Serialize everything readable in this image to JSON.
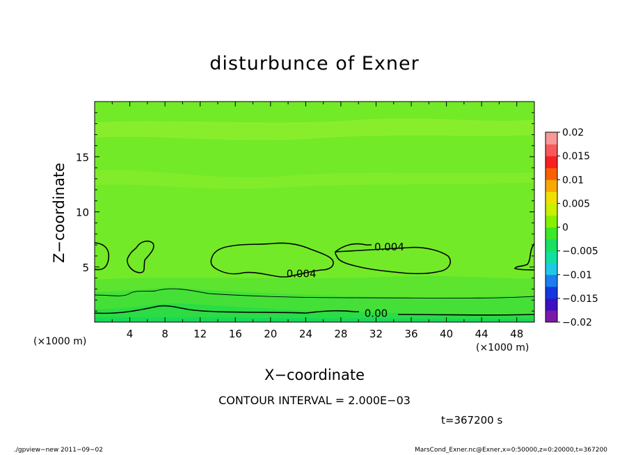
{
  "chart_data": {
    "type": "heatmap",
    "title": "disturbunce of Exner",
    "xlabel": "X−coordinate",
    "ylabel": "Z−coordinate",
    "x_unit": "(×1000 m)",
    "y_unit": "(×1000 m)",
    "xlim": [
      0,
      50
    ],
    "ylim": [
      0,
      20
    ],
    "x_ticks": [
      4,
      8,
      12,
      16,
      20,
      24,
      28,
      32,
      36,
      40,
      44,
      48
    ],
    "y_ticks": [
      5,
      10,
      15
    ],
    "colorbar": {
      "ticks": [
        {
          "value": 0.02,
          "label": "0.02"
        },
        {
          "value": 0.015,
          "label": "0.015"
        },
        {
          "value": 0.01,
          "label": "0.01"
        },
        {
          "value": 0.005,
          "label": "0.005"
        },
        {
          "value": 0,
          "label": "0"
        },
        {
          "value": -0.005,
          "label": "−0.005"
        },
        {
          "value": -0.01,
          "label": "−0.01"
        },
        {
          "value": -0.015,
          "label": "−0.015"
        },
        {
          "value": -0.02,
          "label": "−0.02"
        }
      ],
      "colors": [
        "#7a1aa8",
        "#3b10c0",
        "#1238e0",
        "#1a7ef0",
        "#20c8e8",
        "#10e0a0",
        "#18e060",
        "#3ce828",
        "#86f000",
        "#c8f000",
        "#f0e000",
        "#f8a800",
        "#f86000",
        "#f82020",
        "#f85858",
        "#f89898"
      ]
    },
    "contour_labels": [
      {
        "text": "0.004",
        "x": 33.5,
        "z": 6.8
      },
      {
        "text": "0.004",
        "x": 23.5,
        "z": 4.4
      },
      {
        "text": "0.00",
        "x": 32.0,
        "z": 0.8
      }
    ],
    "contour_interval_text": "CONTOUR INTERVAL = 2.000E−03",
    "time_text": "t=367200 s"
  },
  "footer": {
    "left": "./gpview−new   2011−09−02",
    "right": "MarsCond_Exner.nc@Exner,x=0:50000,z=0:20000,t=367200"
  }
}
